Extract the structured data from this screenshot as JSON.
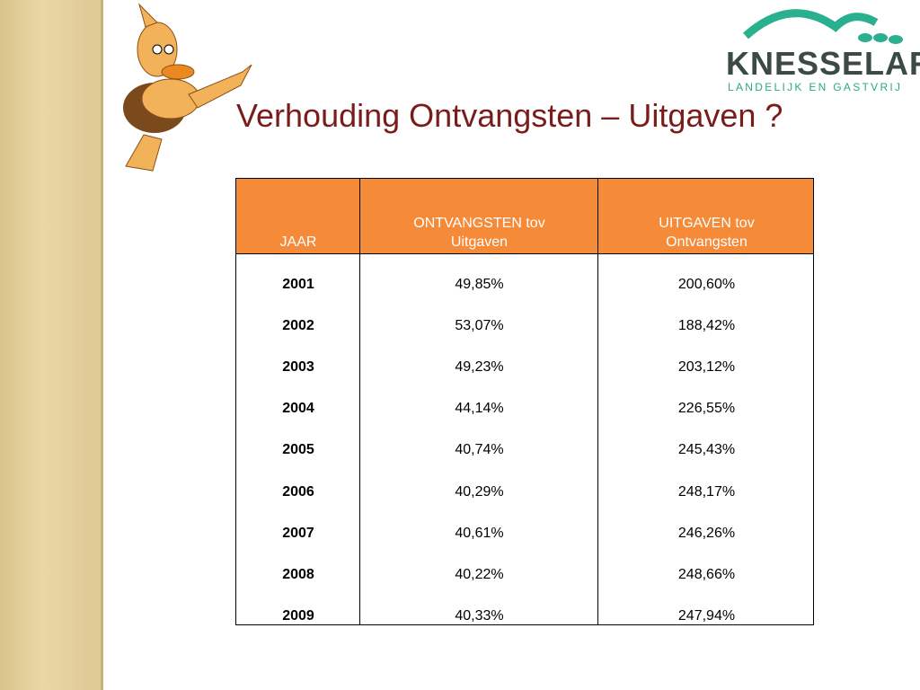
{
  "title": "Verhouding Ontvangsten – Uitgaven ?",
  "logo": {
    "name": "KNESSELARE",
    "tagline": "LANDELIJK EN GASTVRIJ"
  },
  "table": {
    "header": [
      [
        "JAAR"
      ],
      [
        "ONTVANGSTEN tov",
        "Uitgaven"
      ],
      [
        "UITGAVEN tov",
        "Ontvangsten"
      ]
    ],
    "rows": [
      [
        "2001",
        "49,85%",
        "200,60%"
      ],
      [
        "2002",
        "53,07%",
        "188,42%"
      ],
      [
        "2003",
        "49,23%",
        "203,12%"
      ],
      [
        "2004",
        "44,14%",
        "226,55%"
      ],
      [
        "2005",
        "40,74%",
        "245,43%"
      ],
      [
        "2006",
        "40,29%",
        "248,17%"
      ],
      [
        "2007",
        "40,61%",
        "246,26%"
      ],
      [
        "2008",
        "40,22%",
        "248,66%"
      ],
      [
        "2009",
        "40,33%",
        "247,94%"
      ]
    ]
  }
}
